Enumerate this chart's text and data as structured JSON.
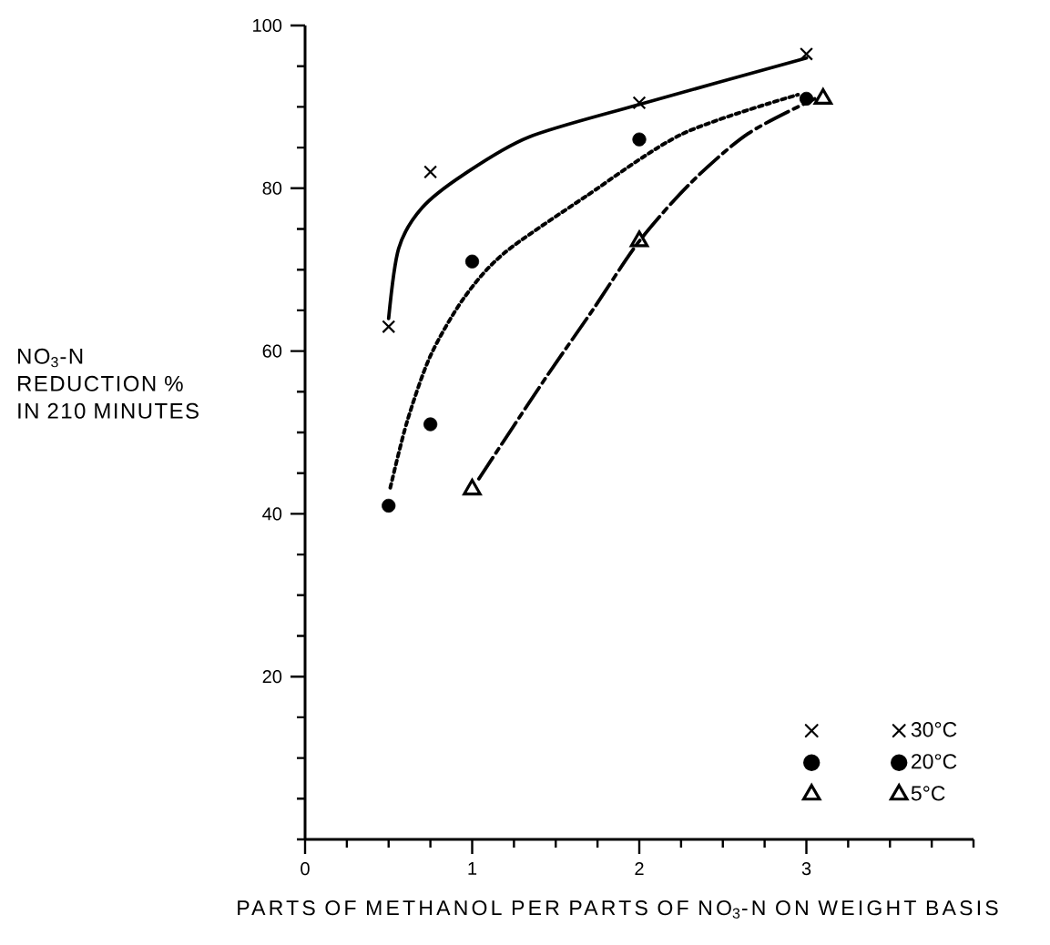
{
  "chart_data": {
    "type": "scatter",
    "xlabel": "PARTS OF METHANOL PER PARTS OF NO$_{3}$-N ON WEIGHT BASIS",
    "ylabel": "NO$_{3}$-N REDUCTION % IN 210 MINUTES",
    "xlim": [
      0,
      4
    ],
    "ylim": [
      0,
      100
    ],
    "xticks": [
      0,
      {
        "value": 0.25,
        "label": null
      },
      {
        "value": 0.5,
        "label": null
      },
      {
        "value": 0.75,
        "label": null
      },
      1,
      {
        "value": 1.25,
        "label": null
      },
      {
        "value": 1.5,
        "label": null
      },
      {
        "value": 1.75,
        "label": null
      },
      2,
      {
        "value": 2.25,
        "label": null
      },
      {
        "value": 2.5,
        "label": null
      },
      {
        "value": 2.75,
        "label": null
      },
      3,
      {
        "value": 3.25,
        "label": null
      },
      {
        "value": 3.5,
        "label": null
      },
      {
        "value": 3.75,
        "label": null
      },
      {
        "value": 4,
        "label": null
      }
    ],
    "yticks": [
      {
        "value": 0,
        "label": null
      },
      {
        "value": 5,
        "label": null
      },
      {
        "value": 10,
        "label": null
      },
      {
        "value": 15,
        "label": null
      },
      20,
      {
        "value": 25,
        "label": null
      },
      {
        "value": 30,
        "label": null
      },
      {
        "value": 35,
        "label": null
      },
      40,
      {
        "value": 45,
        "label": null
      },
      {
        "value": 50,
        "label": null
      },
      {
        "value": 55,
        "label": null
      },
      60,
      {
        "value": 65,
        "label": null
      },
      {
        "value": 70,
        "label": null
      },
      {
        "value": 75,
        "label": null
      },
      80,
      {
        "value": 85,
        "label": null
      },
      {
        "value": 90,
        "label": null
      },
      {
        "value": 95,
        "label": null
      },
      100
    ],
    "grid": false,
    "legend": "bottom right",
    "series": [
      {
        "name": "30°C",
        "type": "scatter",
        "marker": "cross",
        "color": "#000000",
        "x": [
          0.5,
          0.75,
          2,
          3
        ],
        "values": [
          63,
          82,
          90.5,
          96.5
        ]
      },
      {
        "type": "line",
        "line_style": "solid",
        "marker": "none",
        "color": "#000000",
        "x": [
          0.5,
          0.56,
          0.7,
          0.95,
          1.34,
          2,
          3
        ],
        "values": [
          64,
          72.6,
          77.6,
          81.7,
          86.3,
          90.3,
          96
        ]
      },
      {
        "name": "20°C",
        "type": "scatter",
        "marker": "circle",
        "color": "#000000",
        "x": [
          0.5,
          0.75,
          1,
          2,
          3
        ],
        "values": [
          41,
          51,
          71,
          86,
          91
        ]
      },
      {
        "type": "line",
        "line_style": "dotted",
        "marker": "none",
        "color": "#000000",
        "x": [
          0.51,
          0.61,
          0.75,
          0.95,
          1.19,
          1.68,
          2.26,
          2.95
        ],
        "values": [
          43.2,
          51.3,
          59.4,
          66.5,
          72,
          79,
          86.7,
          91.5
        ]
      },
      {
        "name": "5°C",
        "type": "scatter",
        "marker": "triangle",
        "color": "#000000",
        "x": [
          1,
          2,
          3.1
        ],
        "values": [
          43,
          73.5,
          91
        ]
      },
      {
        "type": "line",
        "line_style": "dashdot",
        "marker": "none",
        "color": "#000000",
        "x": [
          1.04,
          1.43,
          1.72,
          2,
          2.31,
          2.65,
          3.05
        ],
        "values": [
          44.3,
          56.4,
          65,
          73.5,
          80.7,
          86.7,
          91
        ]
      }
    ]
  }
}
